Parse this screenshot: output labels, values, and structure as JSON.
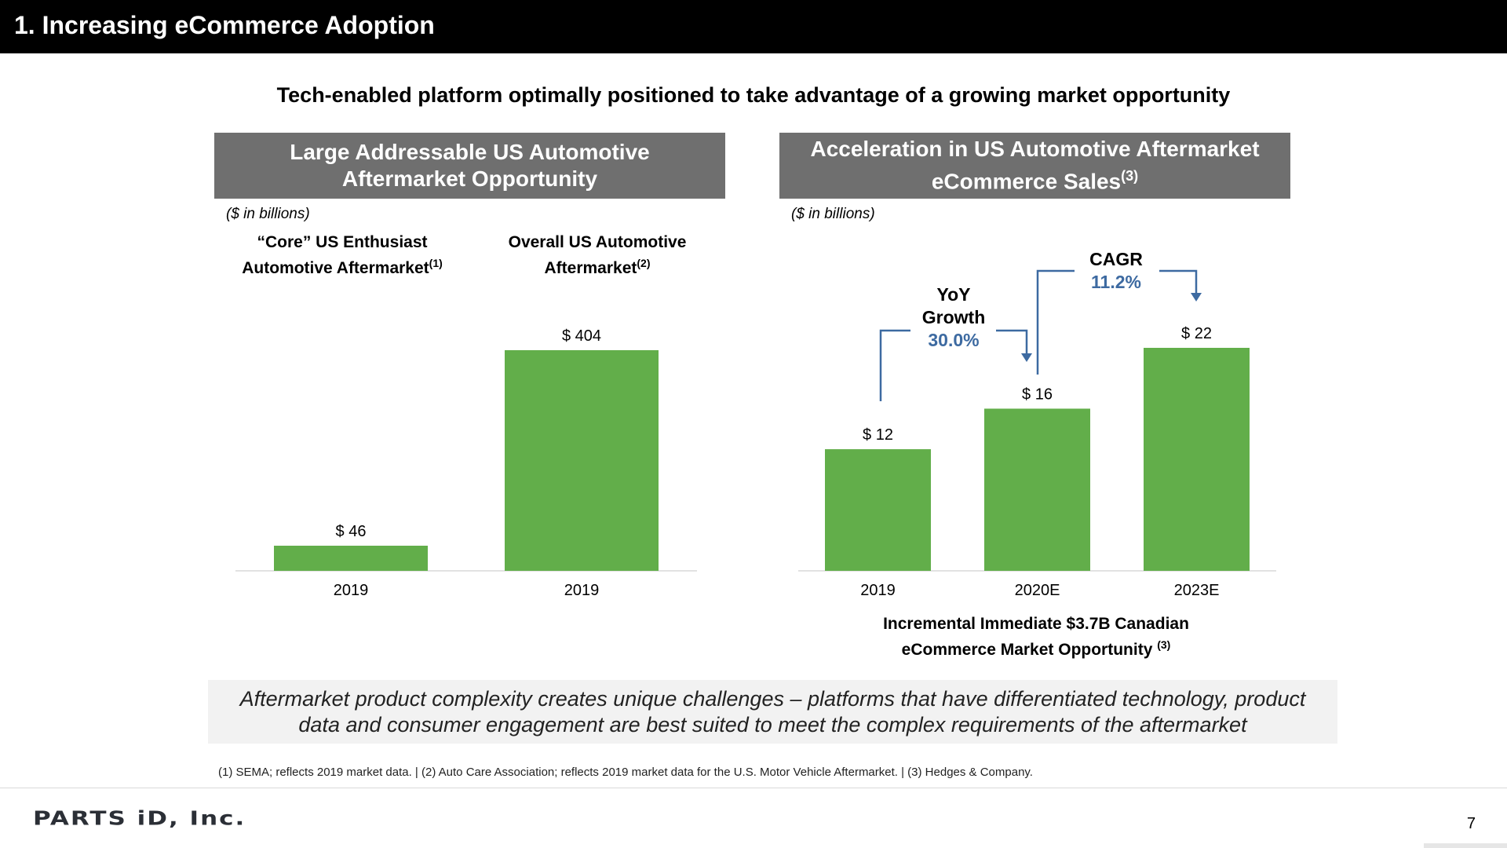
{
  "header": {
    "title": "1. Increasing eCommerce Adoption"
  },
  "subtitle": "Tech-enabled platform optimally positioned to take advantage of a growing market opportunity",
  "left_panel": {
    "header_line1": "Large Addressable US Automotive",
    "header_line2": "Aftermarket Opportunity",
    "unit_note": "($ in billions)",
    "col1_label_line1": "“Core” US Enthusiast",
    "col1_label_line2": "Automotive Aftermarket",
    "col1_footnote_ref": "(1)",
    "col2_label_line1": "Overall US Automotive",
    "col2_label_line2": "Aftermarket",
    "col2_footnote_ref": "(2)"
  },
  "right_panel": {
    "header_line1": "Acceleration in US Automotive Aftermarket",
    "header_line2": "eCommerce Sales",
    "header_footnote_ref": "(3)",
    "unit_note": "($ in billions)",
    "yoy_label_line1": "YoY",
    "yoy_label_line2": "Growth",
    "yoy_value": "30.0%",
    "cagr_label": "CAGR",
    "cagr_value": "11.2%",
    "canada_line1": "Incremental Immediate $3.7B Canadian",
    "canada_line2": "eCommerce Market Opportunity",
    "canada_footnote_ref": "(3)"
  },
  "chart_data": [
    {
      "type": "bar",
      "title": "Large Addressable US Automotive Aftermarket Opportunity",
      "ylabel": "$ in billions",
      "categories": [
        "2019",
        "2019"
      ],
      "series": [
        {
          "name": "Market size",
          "values": [
            46,
            404
          ]
        }
      ],
      "value_labels": [
        "$ 46",
        "$ 404"
      ],
      "ylim": [
        0,
        404
      ]
    },
    {
      "type": "bar",
      "title": "Acceleration in US Automotive Aftermarket eCommerce Sales",
      "ylabel": "$ in billions",
      "categories": [
        "2019",
        "2020E",
        "2023E"
      ],
      "series": [
        {
          "name": "eCommerce sales",
          "values": [
            12,
            16,
            22
          ]
        }
      ],
      "value_labels": [
        "$ 12",
        "$ 16",
        "$ 22"
      ],
      "ylim": [
        0,
        22
      ],
      "annotations": [
        "YoY Growth 30.0%",
        "CAGR 11.2%"
      ]
    }
  ],
  "colors": {
    "bar": "#62ae4a",
    "accent_blue": "#3d6aa1",
    "header_gray": "#6f6f6f",
    "callout_bg": "#f2f2f2"
  },
  "callout": {
    "line1": "Aftermarket product complexity creates unique challenges – platforms that have differentiated technology, product",
    "line2": "data and consumer engagement are best suited to meet the complex requirements of the aftermarket"
  },
  "footnote": "(1) SEMA; reflects 2019 market data. | (2) Auto Care Association; reflects 2019 market data for the U.S. Motor Vehicle Aftermarket. | (3) Hedges & Company.",
  "footer": {
    "logo": "PARTS iD, Inc.",
    "page_number": "7"
  }
}
